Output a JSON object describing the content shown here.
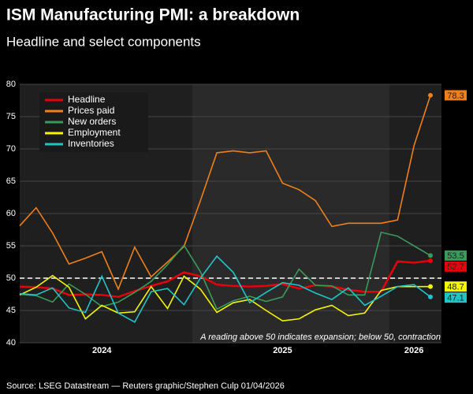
{
  "chart_data": {
    "type": "line",
    "title": "ISM Manufacturing PMI: a breakdown",
    "subtitle": "Headline and select components",
    "annotation": "A reading above 50 indicates expansion; below 50, contraction",
    "source": "Source: LSEG Datastream — Reuters graphic/Stephen Culp 01/04/2026",
    "categories": [
      null,
      null,
      null,
      null,
      null,
      "2024",
      null,
      null,
      null,
      null,
      null,
      null,
      null,
      null,
      null,
      null,
      "2025",
      null,
      null,
      null,
      null,
      null,
      null,
      null,
      "2026",
      null
    ],
    "series": [
      {
        "name": "Headline",
        "color": "#e8000b",
        "values": [
          48.7,
          48.6,
          48.4,
          47.4,
          47.5,
          47.4,
          47.1,
          48.0,
          48.8,
          49.5,
          50.9,
          50.3,
          49.0,
          48.8,
          48.7,
          48.8,
          49.1,
          48.4,
          48.9,
          48.7,
          48.2,
          47.9,
          47.9,
          52.6,
          52.4,
          52.7
        ]
      },
      {
        "name": "Prices paid",
        "color": "#f07f1a",
        "values": [
          58.1,
          60.9,
          57.0,
          52.2,
          53.1,
          54.1,
          48.3,
          54.8,
          50.2,
          52.5,
          54.9,
          62.0,
          69.4,
          69.7,
          69.4,
          69.7,
          64.7,
          63.7,
          62.0,
          58.0,
          58.5,
          58.5,
          58.5,
          59.0,
          70.5,
          78.3
        ]
      },
      {
        "name": "New orders",
        "color": "#3a9a5b",
        "values": [
          47.5,
          47.3,
          46.3,
          49.1,
          47.5,
          45.6,
          46.3,
          47.8,
          49.5,
          52.1,
          55.1,
          51.0,
          45.2,
          46.5,
          47.2,
          46.4,
          47.1,
          51.4,
          48.9,
          48.8,
          47.4,
          47.4,
          57.1,
          56.5,
          55.0,
          53.5
        ]
      },
      {
        "name": "Employment",
        "color": "#f5f500",
        "values": [
          47.4,
          48.6,
          50.4,
          48.6,
          43.7,
          45.8,
          44.6,
          44.8,
          48.7,
          45.3,
          50.3,
          48.3,
          44.7,
          46.2,
          46.7,
          45.0,
          43.4,
          43.7,
          45.1,
          45.8,
          44.2,
          44.6,
          48.1,
          48.7,
          48.7,
          48.7
        ]
      },
      {
        "name": "Inventories",
        "color": "#1fc4c8",
        "values": [
          47.6,
          47.4,
          48.5,
          45.4,
          44.7,
          50.3,
          44.6,
          43.2,
          47.9,
          48.4,
          45.9,
          50.0,
          53.4,
          50.9,
          46.2,
          47.8,
          49.3,
          48.9,
          47.7,
          46.7,
          48.5,
          45.8,
          47.2,
          48.7,
          49.0,
          47.1
        ]
      }
    ],
    "ylim": [
      40,
      80
    ],
    "yticks": [
      40,
      45,
      50,
      55,
      60,
      65,
      70,
      75,
      80
    ],
    "grid": true,
    "reference_line": 50,
    "legend": "upper-left"
  }
}
